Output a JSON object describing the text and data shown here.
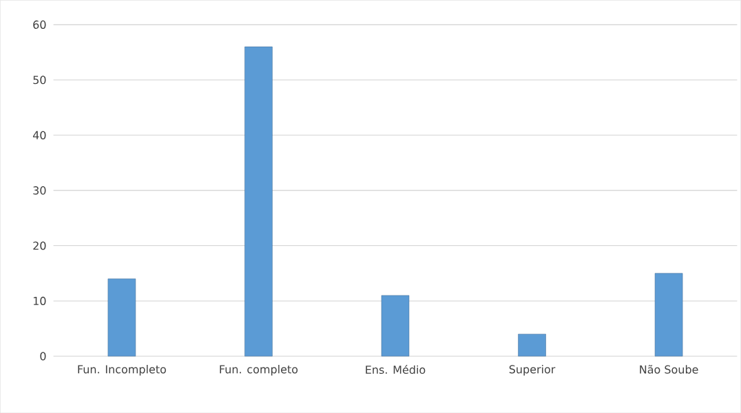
{
  "chart_data": {
    "type": "bar",
    "categories": [
      "Fun. Incompleto",
      "Fun. completo",
      "Ens. Médio",
      "Superior",
      "Não Soube"
    ],
    "values": [
      14,
      56,
      11,
      4,
      15
    ],
    "color": "#5b9bd5",
    "ylim": [
      0,
      60
    ],
    "yticks": [
      0,
      10,
      20,
      30,
      40,
      50,
      60
    ],
    "grid": "y"
  }
}
